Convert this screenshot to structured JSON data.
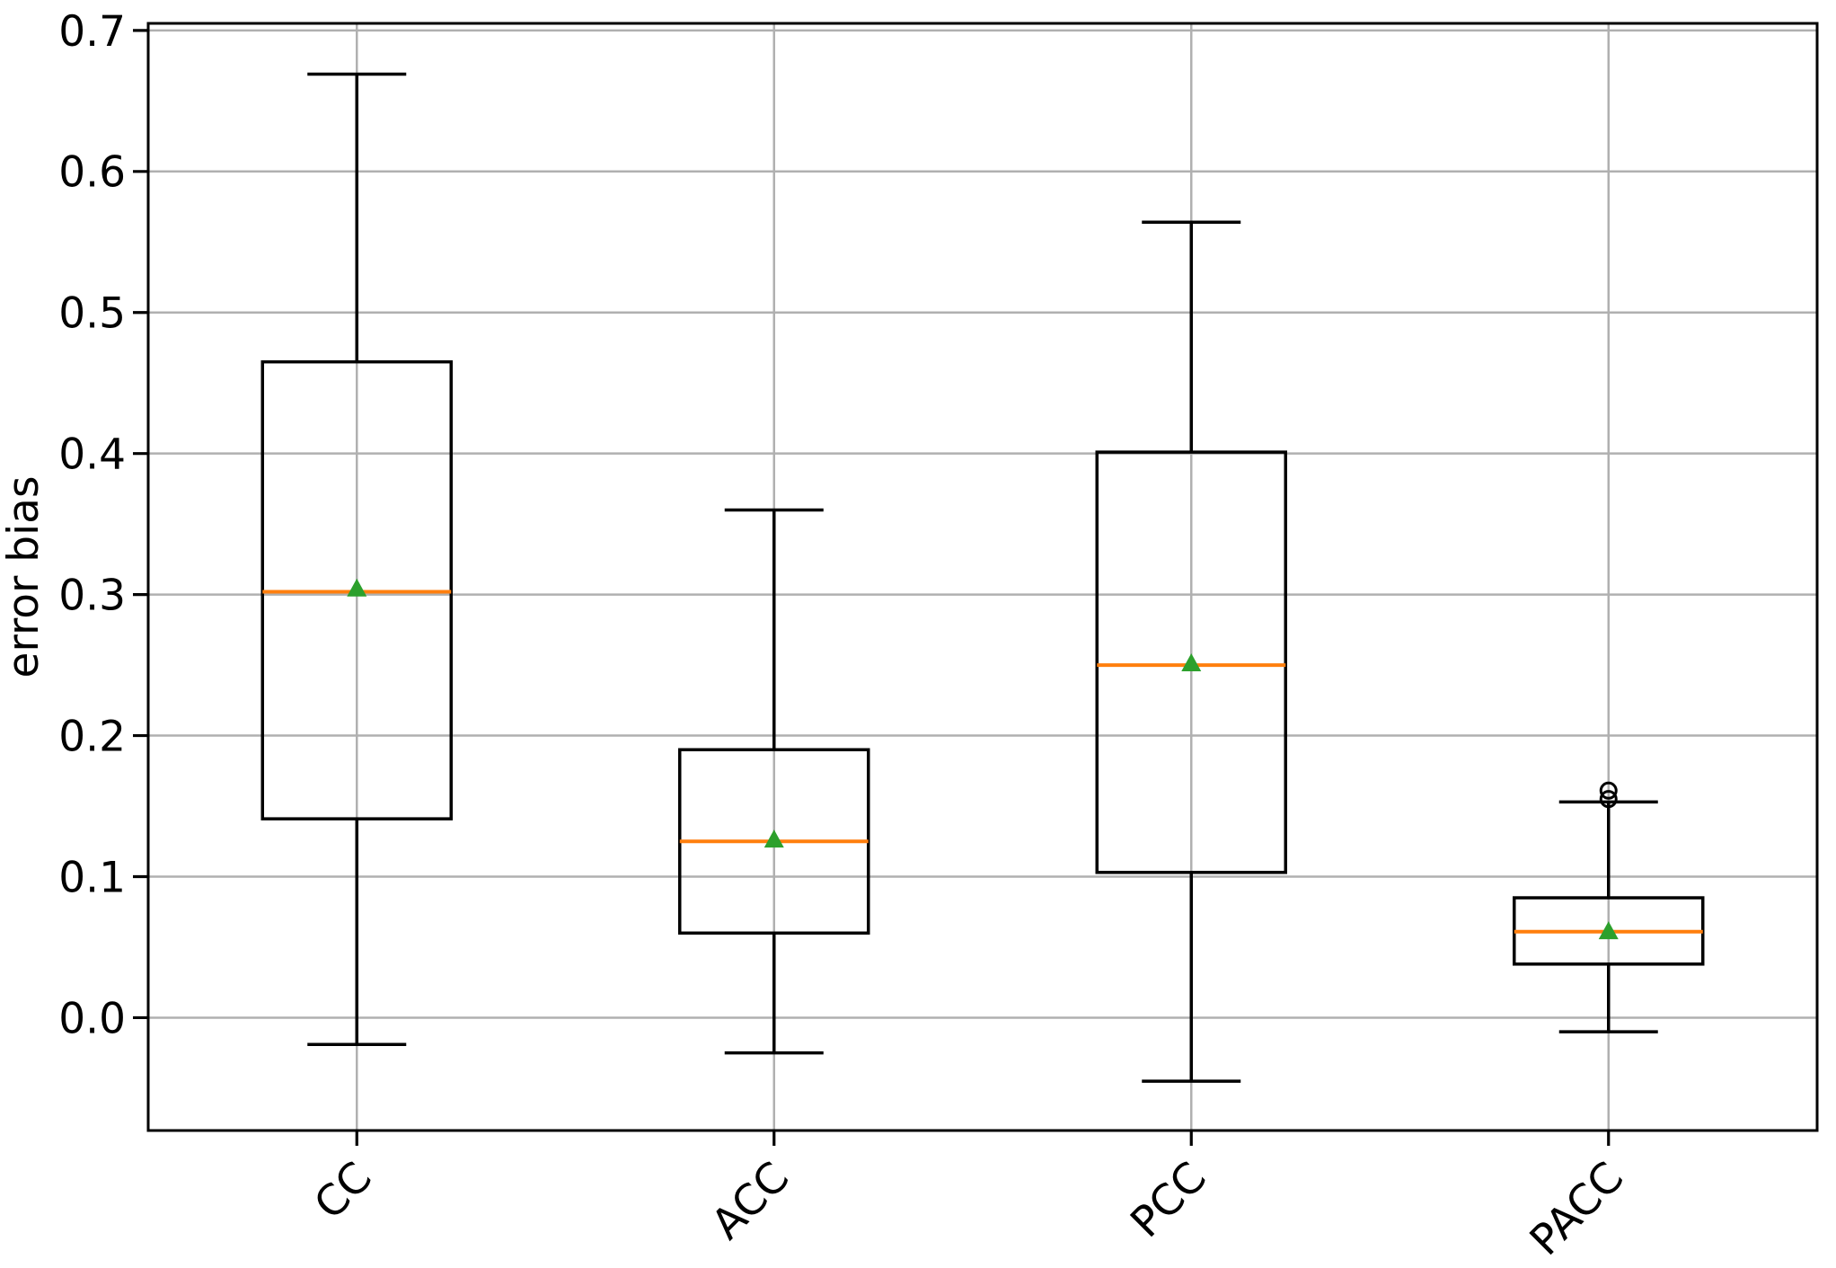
{
  "figure": {
    "background": "#ffffff"
  },
  "chart_data": {
    "type": "boxplot",
    "title": "",
    "xlabel": "",
    "ylabel": "error bias",
    "categories": [
      "CC",
      "ACC",
      "PCC",
      "PACC"
    ],
    "yticks": [
      0.0,
      0.1,
      0.2,
      0.3,
      0.4,
      0.5,
      0.6,
      0.7
    ],
    "ytick_labels": [
      "0.0",
      "0.1",
      "0.2",
      "0.3",
      "0.4",
      "0.5",
      "0.6",
      "0.7"
    ],
    "ylim": [
      -0.08,
      0.705
    ],
    "grid": true,
    "x_label_rotation_deg": 45,
    "series": [
      {
        "name": "CC",
        "whisker_low": -0.019,
        "q1": 0.141,
        "median": 0.302,
        "mean": 0.305,
        "q3": 0.465,
        "whisker_high": 0.669,
        "outliers": []
      },
      {
        "name": "ACC",
        "whisker_low": -0.025,
        "q1": 0.06,
        "median": 0.125,
        "mean": 0.127,
        "q3": 0.19,
        "whisker_high": 0.36,
        "outliers": []
      },
      {
        "name": "PCC",
        "whisker_low": -0.045,
        "q1": 0.103,
        "median": 0.25,
        "mean": 0.252,
        "q3": 0.401,
        "whisker_high": 0.564,
        "outliers": []
      },
      {
        "name": "PACC",
        "whisker_low": -0.01,
        "q1": 0.038,
        "median": 0.061,
        "mean": 0.062,
        "q3": 0.085,
        "whisker_high": 0.153,
        "outliers": [
          0.155,
          0.161
        ]
      }
    ],
    "colors": {
      "box_line": "#000000",
      "median": "#ff7f0e",
      "mean_marker": "#2ca02c",
      "grid": "#b0b0b0",
      "spine": "#000000",
      "tick": "#000000",
      "text": "#000000",
      "background": "#ffffff"
    }
  }
}
